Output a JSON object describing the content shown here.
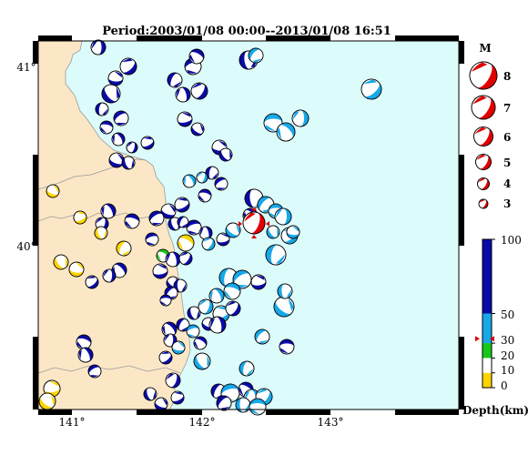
{
  "title": "Period:2003/01/08 00:00--2013/01/08 16:51",
  "map": {
    "lat_ticks": [
      "41°",
      "40°"
    ],
    "lon_ticks": [
      "141°",
      "142°",
      "143°"
    ],
    "colors": {
      "sea": "#dcfbfb",
      "land": "#fbe7c6",
      "border": "#9a9a9a"
    }
  },
  "magnitude_legend": {
    "title": "M",
    "items": [
      {
        "label": "8"
      },
      {
        "label": "7"
      },
      {
        "label": "6"
      },
      {
        "label": "5"
      },
      {
        "label": "4"
      },
      {
        "label": "3"
      }
    ]
  },
  "depth_scale": {
    "labels": [
      "100",
      "50",
      "30",
      "20",
      "10",
      "0"
    ],
    "unit_label": "Depth(km)",
    "bands": [
      {
        "from": 0,
        "to": 10,
        "color": "#ffd400"
      },
      {
        "from": 10,
        "to": 20,
        "color": "#ffffff"
      },
      {
        "from": 20,
        "to": 30,
        "color": "#18c818"
      },
      {
        "from": 30,
        "to": 50,
        "color": "#18a8e8"
      },
      {
        "from": 50,
        "to": 100,
        "color": "#0a0aa8"
      }
    ]
  },
  "main_event": {
    "color": "#e00000"
  }
}
